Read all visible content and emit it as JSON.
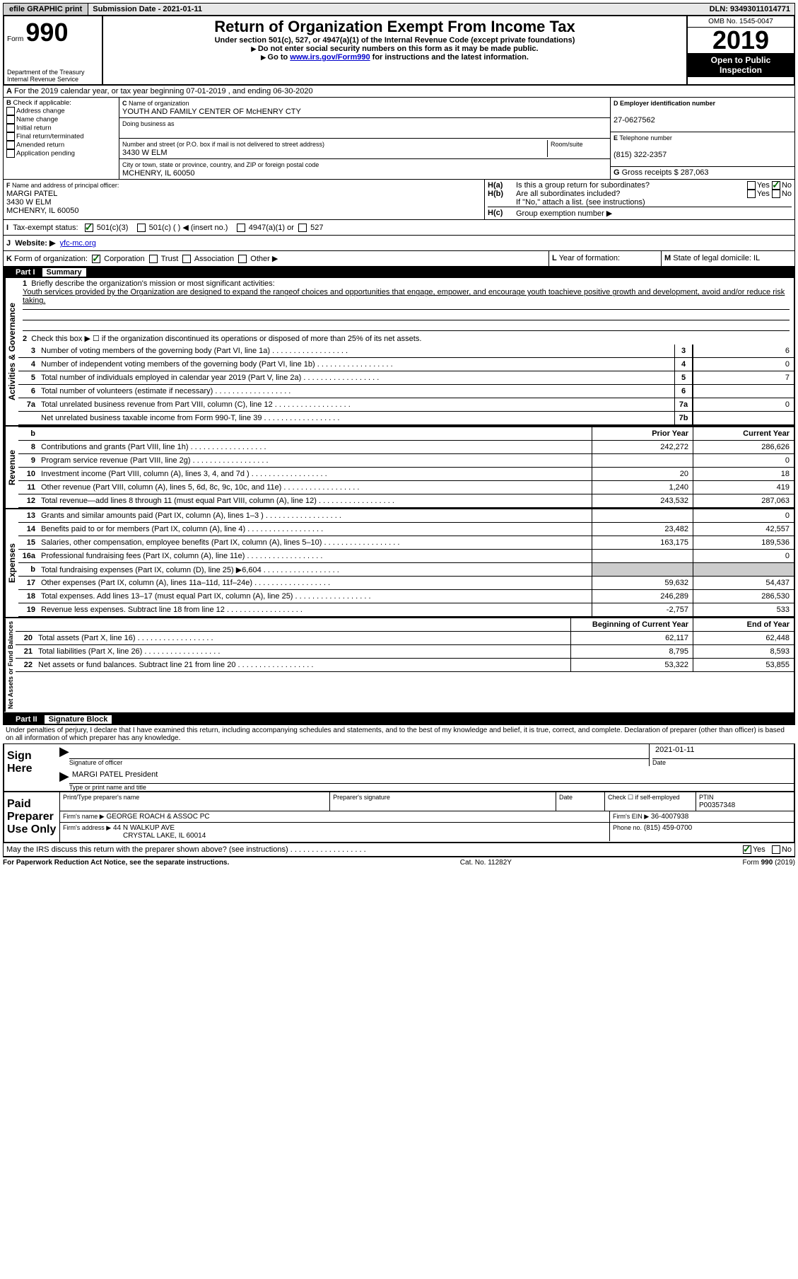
{
  "topbar": {
    "efile": "efile GRAPHIC print",
    "submission_label": "Submission Date - ",
    "submission_date": "2021-01-11",
    "dln_label": "DLN: ",
    "dln": "93493011014771"
  },
  "header": {
    "form_word": "Form",
    "form_num": "990",
    "dept": "Department of the Treasury",
    "irs": "Internal Revenue Service",
    "title": "Return of Organization Exempt From Income Tax",
    "sub1": "Under section 501(c), 527, or 4947(a)(1) of the Internal Revenue Code (except private foundations)",
    "sub2": "Do not enter social security numbers on this form as it may be made public.",
    "sub3": "Go to",
    "link": "www.irs.gov/Form990",
    "sub3b": "for instructions and the latest information.",
    "omb": "OMB No. 1545-0047",
    "year": "2019",
    "inspection1": "Open to Public",
    "inspection2": "Inspection"
  },
  "periodA": "For the 2019 calendar year, or tax year beginning 07-01-2019    , and ending 06-30-2020",
  "B": {
    "title": "Check if applicable:",
    "opts": [
      "Address change",
      "Name change",
      "Initial return",
      "Final return/terminated",
      "Amended return",
      "Application pending"
    ]
  },
  "C": {
    "name_label": "Name of organization",
    "name": "YOUTH AND FAMILY CENTER OF McHENRY CTY",
    "dba_label": "Doing business as",
    "addr_label": "Number and street (or P.O. box if mail is not delivered to street address)",
    "room_label": "Room/suite",
    "addr": "3430 W ELM",
    "city_label": "City or town, state or province, country, and ZIP or foreign postal code",
    "city": "MCHENRY, IL  60050"
  },
  "D": {
    "label": "Employer identification number",
    "val": "27-0627562"
  },
  "E": {
    "label": "Telephone number",
    "val": "(815) 322-2357"
  },
  "G": {
    "label": "Gross receipts $",
    "val": "287,063"
  },
  "F": {
    "label": "Name and address of principal officer:",
    "name": "MARGI PATEL",
    "addr": "3430 W ELM",
    "city": "MCHENRY, IL  60050"
  },
  "H": {
    "a": "Is this a group return for subordinates?",
    "b": "Are all subordinates included?",
    "b_sub": "If \"No,\" attach a list. (see instructions)",
    "c": "Group exemption number ▶",
    "yes": "Yes",
    "no": "No"
  },
  "I": {
    "label": "Tax-exempt status:",
    "opts": [
      "501(c)(3)",
      "501(c) (  ) ◀ (insert no.)",
      "4947(a)(1) or",
      "527"
    ]
  },
  "J": {
    "label": "Website: ▶",
    "val": "yfc-mc.org"
  },
  "K": {
    "label": "Form of organization:",
    "opts": [
      "Corporation",
      "Trust",
      "Association",
      "Other ▶"
    ]
  },
  "L": {
    "label": "Year of formation:"
  },
  "M": {
    "label": "State of legal domicile:",
    "val": "IL"
  },
  "parts": {
    "p1": "Part I",
    "p1t": "Summary",
    "p2": "Part II",
    "p2t": "Signature Block"
  },
  "summary": {
    "line1_label": "Briefly describe the organization's mission or most significant activities:",
    "line1_text": "Youth services provided by the Organization are designed to expand the rangeof choices and opportunities that engage, empower, and encourage youth toachieve positive growth and development, avoid and/or reduce risk taking.",
    "line2": "Check this box ▶ ☐ if the organization discontinued its operations or disposed of more than 25% of its net assets.",
    "lines": [
      {
        "n": "3",
        "t": "Number of voting members of the governing body (Part VI, line 1a)",
        "box": "3",
        "v": "6"
      },
      {
        "n": "4",
        "t": "Number of independent voting members of the governing body (Part VI, line 1b)",
        "box": "4",
        "v": "0"
      },
      {
        "n": "5",
        "t": "Total number of individuals employed in calendar year 2019 (Part V, line 2a)",
        "box": "5",
        "v": "7"
      },
      {
        "n": "6",
        "t": "Total number of volunteers (estimate if necessary)",
        "box": "6",
        "v": ""
      },
      {
        "n": "7a",
        "t": "Total unrelated business revenue from Part VIII, column (C), line 12",
        "box": "7a",
        "v": "0"
      },
      {
        "n": "",
        "t": "Net unrelated business taxable income from Form 990-T, line 39",
        "box": "7b",
        "v": ""
      }
    ],
    "col_prior": "Prior Year",
    "col_curr": "Current Year",
    "rev": [
      {
        "n": "8",
        "t": "Contributions and grants (Part VIII, line 1h)",
        "p": "242,272",
        "c": "286,626"
      },
      {
        "n": "9",
        "t": "Program service revenue (Part VIII, line 2g)",
        "p": "",
        "c": "0"
      },
      {
        "n": "10",
        "t": "Investment income (Part VIII, column (A), lines 3, 4, and 7d )",
        "p": "20",
        "c": "18"
      },
      {
        "n": "11",
        "t": "Other revenue (Part VIII, column (A), lines 5, 6d, 8c, 9c, 10c, and 11e)",
        "p": "1,240",
        "c": "419"
      },
      {
        "n": "12",
        "t": "Total revenue—add lines 8 through 11 (must equal Part VIII, column (A), line 12)",
        "p": "243,532",
        "c": "287,063"
      }
    ],
    "exp": [
      {
        "n": "13",
        "t": "Grants and similar amounts paid (Part IX, column (A), lines 1–3 )",
        "p": "",
        "c": "0"
      },
      {
        "n": "14",
        "t": "Benefits paid to or for members (Part IX, column (A), line 4)",
        "p": "23,482",
        "c": "42,557"
      },
      {
        "n": "15",
        "t": "Salaries, other compensation, employee benefits (Part IX, column (A), lines 5–10)",
        "p": "163,175",
        "c": "189,536"
      },
      {
        "n": "16a",
        "t": "Professional fundraising fees (Part IX, column (A), line 11e)",
        "p": "",
        "c": "0"
      },
      {
        "n": "b",
        "t": "Total fundraising expenses (Part IX, column (D), line 25) ▶6,604",
        "p": "SHADE",
        "c": "SHADE"
      },
      {
        "n": "17",
        "t": "Other expenses (Part IX, column (A), lines 11a–11d, 11f–24e)",
        "p": "59,632",
        "c": "54,437"
      },
      {
        "n": "18",
        "t": "Total expenses. Add lines 13–17 (must equal Part IX, column (A), line 25)",
        "p": "246,289",
        "c": "286,530"
      },
      {
        "n": "19",
        "t": "Revenue less expenses. Subtract line 18 from line 12",
        "p": "-2,757",
        "c": "533"
      }
    ],
    "col_begin": "Beginning of Current Year",
    "col_end": "End of Year",
    "net": [
      {
        "n": "20",
        "t": "Total assets (Part X, line 16)",
        "p": "62,117",
        "c": "62,448"
      },
      {
        "n": "21",
        "t": "Total liabilities (Part X, line 26)",
        "p": "8,795",
        "c": "8,593"
      },
      {
        "n": "22",
        "t": "Net assets or fund balances. Subtract line 21 from line 20",
        "p": "53,322",
        "c": "53,855"
      }
    ],
    "vtext": {
      "gov": "Activities & Governance",
      "rev": "Revenue",
      "exp": "Expenses",
      "net": "Net Assets or Fund Balances"
    }
  },
  "sig": {
    "penalty": "Under penalties of perjury, I declare that I have examined this return, including accompanying schedules and statements, and to the best of my knowledge and belief, it is true, correct, and complete. Declaration of preparer (other than officer) is based on all information of which preparer has any knowledge.",
    "sign_here": "Sign Here",
    "sig_officer": "Signature of officer",
    "date_label": "Date",
    "date": "2021-01-11",
    "name": "MARGI PATEL President",
    "type_label": "Type or print name and title",
    "paid": "Paid Preparer Use Only",
    "prep_name_label": "Print/Type preparer's name",
    "prep_sig_label": "Preparer's signature",
    "check_self": "Check ☐ if self-employed",
    "ptin_label": "PTIN",
    "ptin": "P00357348",
    "firm_name_label": "Firm's name    ▶",
    "firm_name": "GEORGE ROACH & ASSOC PC",
    "firm_ein_label": "Firm's EIN ▶",
    "firm_ein": "36-4007938",
    "firm_addr_label": "Firm's address ▶",
    "firm_addr1": "44 N WALKUP AVE",
    "firm_addr2": "CRYSTAL LAKE, IL  60014",
    "phone_label": "Phone no.",
    "phone": "(815) 459-0700",
    "discuss": "May the IRS discuss this return with the preparer shown above? (see instructions)"
  },
  "footer": {
    "left": "For Paperwork Reduction Act Notice, see the separate instructions.",
    "mid": "Cat. No. 11282Y",
    "right": "Form 990 (2019)"
  }
}
